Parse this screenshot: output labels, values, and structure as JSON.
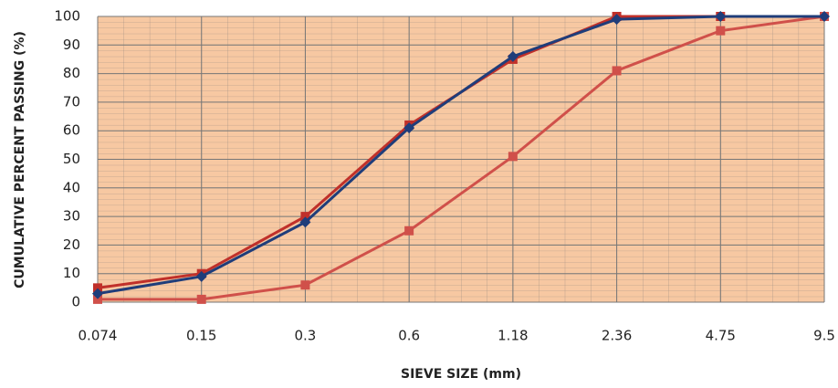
{
  "chart_data": {
    "type": "line",
    "x_label": "SIEVE SIZE (mm)",
    "y_label": "CUMULATIVE PERCENT PASSING (%)",
    "categories": [
      "0.074",
      "0.15",
      "0.3",
      "0.6",
      "1.18",
      "2.36",
      "4.75",
      "9.5"
    ],
    "series": [
      {
        "color": "#c0302a",
        "marker": "square",
        "values": [
          5,
          10,
          30,
          62,
          85,
          100,
          100,
          100
        ]
      },
      {
        "color": "#d0504a",
        "marker": "square",
        "values": [
          1,
          1,
          6,
          25,
          51,
          81,
          95,
          100
        ]
      },
      {
        "color": "#1f3d7a",
        "marker": "diamond",
        "values": [
          3,
          9,
          28,
          61,
          86,
          99,
          100,
          100
        ]
      }
    ],
    "ylim": [
      0,
      100
    ],
    "yticks": [
      0,
      10,
      20,
      30,
      40,
      50,
      60,
      70,
      80,
      90,
      100
    ],
    "grid": true
  }
}
